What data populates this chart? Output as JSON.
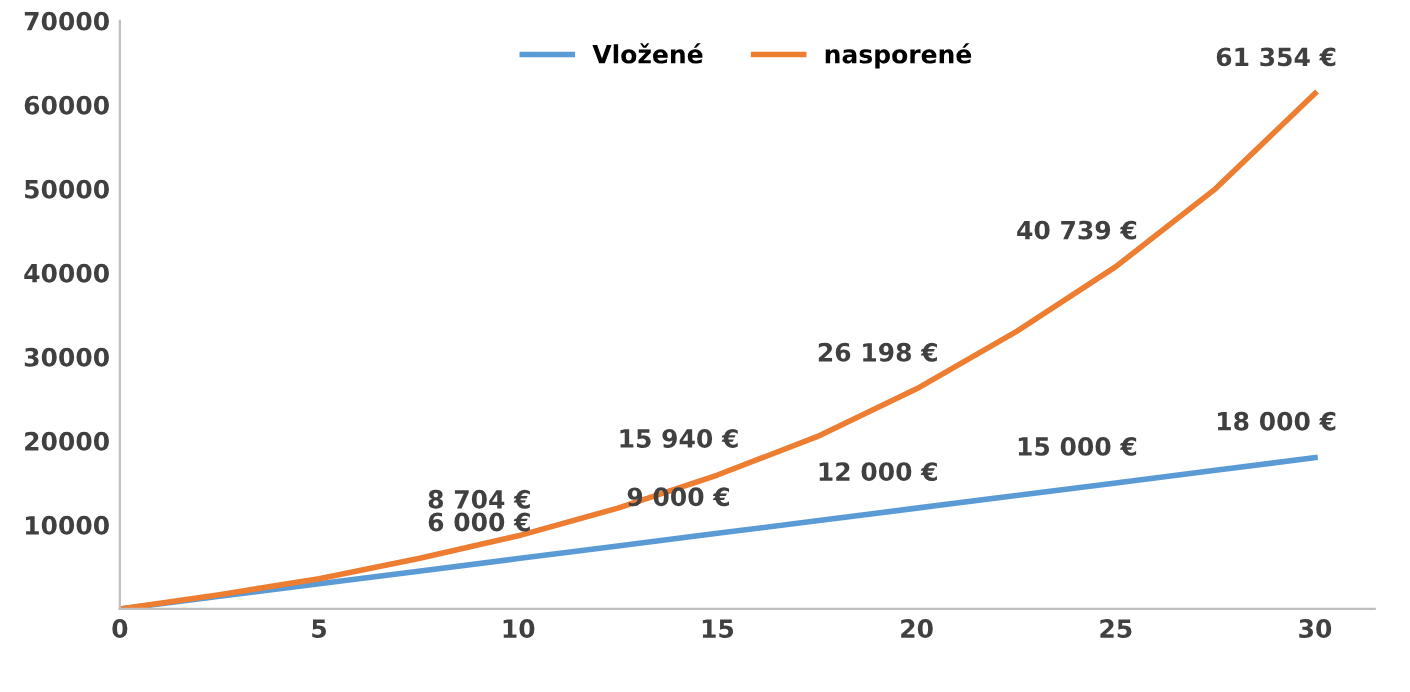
{
  "chart_data": {
    "type": "line",
    "x": [
      0,
      2.5,
      5,
      7.5,
      10,
      12.5,
      15,
      17.5,
      20,
      22.5,
      25,
      27.5,
      30
    ],
    "series": [
      {
        "name": "Vložené",
        "color": "#5b9bd5",
        "values": [
          0,
          1500,
          3000,
          4500,
          6000,
          7500,
          9000,
          10500,
          12000,
          13500,
          15000,
          16500,
          18000
        ],
        "value_labels": [
          null,
          null,
          null,
          null,
          "6 000 €",
          null,
          "9 000 €",
          null,
          "12 000 €",
          null,
          "15 000 €",
          null,
          "18 000 €"
        ]
      },
      {
        "name": "nasporené",
        "color": "#ed7d31",
        "values": [
          0,
          1700,
          3600,
          6000,
          8704,
          12000,
          15940,
          20500,
          26198,
          33000,
          40739,
          50000,
          61354
        ],
        "value_labels": [
          null,
          null,
          null,
          null,
          "8 704 €",
          null,
          "15 940 €",
          null,
          "26 198 €",
          null,
          "40 739 €",
          null,
          "61 354 €"
        ]
      }
    ],
    "xlim": [
      0,
      31.5
    ],
    "xticks": [
      0,
      5,
      10,
      15,
      20,
      25,
      30
    ],
    "ylim": [
      0,
      70000
    ],
    "yticks": [
      10000,
      20000,
      30000,
      40000,
      50000,
      60000,
      70000
    ],
    "grid": false,
    "legend": "top",
    "marker": "none",
    "line_style": "solid"
  }
}
